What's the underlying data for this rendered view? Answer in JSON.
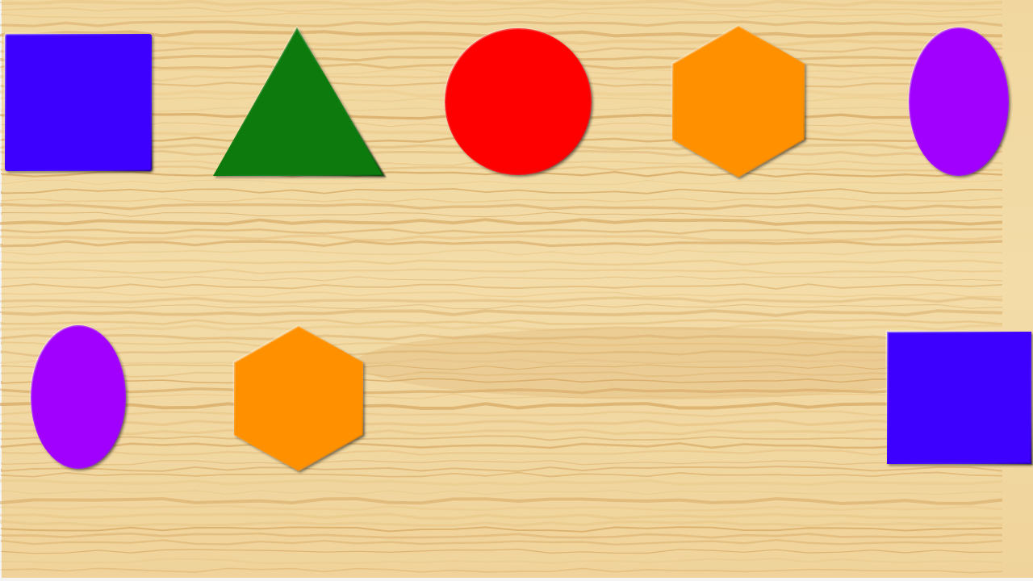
{
  "game": {
    "board": {
      "background": "wood",
      "colors": {
        "wood_light": "#f3dba4",
        "wood_mid": "#e8c585",
        "wood_dark": "#d6a863",
        "frame": "#f4f4f4"
      }
    },
    "target_slots": [
      {
        "id": "square",
        "shape": "square",
        "color": "#3d00ff",
        "filled": true
      },
      {
        "id": "triangle",
        "shape": "triangle",
        "color": "#077a07",
        "filled": true
      },
      {
        "id": "circle",
        "shape": "circle",
        "color": "#ff0000",
        "filled": true
      },
      {
        "id": "hexagon",
        "shape": "hexagon",
        "color": "#ff9000",
        "filled": true
      },
      {
        "id": "oval",
        "shape": "oval",
        "color": "#a100ff",
        "filled": true
      }
    ],
    "draggable_pieces": [
      {
        "id": "oval",
        "shape": "oval",
        "color": "#a100ff"
      },
      {
        "id": "hexagon",
        "shape": "hexagon",
        "color": "#ff9000"
      },
      {
        "id": "square",
        "shape": "square",
        "color": "#3d00ff"
      }
    ]
  }
}
